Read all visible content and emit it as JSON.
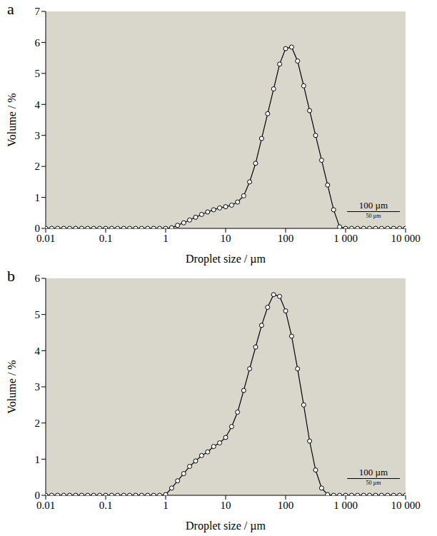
{
  "chart_data": [
    {
      "type": "line",
      "title": "a",
      "xlabel": "Droplet size / µm",
      "ylabel": "Volume / %",
      "log": "x",
      "grid": false,
      "annotations": [
        "100 µm",
        "50 µm"
      ],
      "xlim": [
        0.01,
        10000
      ],
      "xticks": [
        0.01,
        0.1,
        1,
        10,
        100,
        {
          "value": 1000,
          "label": "1 000"
        },
        {
          "value": 10000,
          "label": "10 000"
        }
      ],
      "ylim": [
        0,
        7
      ],
      "yticks": [
        0,
        1,
        2,
        3,
        4,
        5,
        6,
        7
      ],
      "x": [
        0.01,
        0.0126,
        0.0158,
        0.02,
        0.0251,
        0.0316,
        0.0398,
        0.0501,
        0.0631,
        0.0794,
        0.1,
        0.126,
        0.158,
        0.2,
        0.251,
        0.316,
        0.398,
        0.501,
        0.631,
        0.794,
        1,
        1.26,
        1.58,
        2,
        2.51,
        3.16,
        3.98,
        5.01,
        6.31,
        7.94,
        10,
        12.6,
        15.8,
        20,
        25.1,
        31.6,
        39.8,
        50.1,
        63.1,
        79.4,
        100,
        126,
        158,
        200,
        251,
        316,
        398,
        501,
        631,
        794,
        1000,
        1260,
        1580,
        2000,
        2510,
        3160,
        3980,
        5010,
        6310,
        7940,
        10000
      ],
      "values": [
        0,
        0,
        0,
        0,
        0,
        0,
        0,
        0,
        0,
        0,
        0,
        0,
        0,
        0,
        0,
        0,
        0,
        0,
        0,
        0,
        0,
        0.02,
        0.1,
        0.18,
        0.27,
        0.36,
        0.45,
        0.53,
        0.6,
        0.66,
        0.7,
        0.75,
        0.85,
        1.05,
        1.5,
        2.1,
        2.9,
        3.7,
        4.5,
        5.3,
        5.8,
        5.85,
        5.4,
        4.6,
        3.8,
        3.0,
        2.2,
        1.4,
        0.6,
        0.05,
        0,
        0,
        0,
        0,
        0,
        0,
        0,
        0,
        0,
        0,
        0
      ],
      "color": "#000000",
      "marker": "circle",
      "line_style": "solid"
    },
    {
      "type": "line",
      "title": "b",
      "xlabel": "Droplet size / µm",
      "ylabel": "Volume / %",
      "log": "x",
      "grid": false,
      "annotations": [
        "100 µm",
        "50 µm"
      ],
      "xlim": [
        0.01,
        10000
      ],
      "xticks": [
        0.01,
        0.1,
        1,
        10,
        100,
        {
          "value": 1000,
          "label": "1 000"
        },
        {
          "value": 10000,
          "label": "10 000"
        }
      ],
      "ylim": [
        0,
        6
      ],
      "yticks": [
        0,
        1,
        2,
        3,
        4,
        5,
        6
      ],
      "x": [
        0.01,
        0.0126,
        0.0158,
        0.02,
        0.0251,
        0.0316,
        0.0398,
        0.0501,
        0.0631,
        0.0794,
        0.1,
        0.126,
        0.158,
        0.2,
        0.251,
        0.316,
        0.398,
        0.501,
        0.631,
        0.794,
        1,
        1.26,
        1.58,
        2,
        2.51,
        3.16,
        3.98,
        5.01,
        6.31,
        7.94,
        10,
        12.6,
        15.8,
        20,
        25.1,
        31.6,
        39.8,
        50.1,
        63.1,
        79.4,
        100,
        126,
        158,
        200,
        251,
        316,
        398,
        501,
        631,
        794,
        1000,
        1260,
        1580,
        2000,
        2510,
        3160,
        3980,
        5010,
        6310,
        7940,
        10000
      ],
      "values": [
        0,
        0,
        0,
        0,
        0,
        0,
        0,
        0,
        0,
        0,
        0,
        0,
        0,
        0,
        0,
        0,
        0,
        0,
        0,
        0,
        0.02,
        0.2,
        0.4,
        0.6,
        0.8,
        0.95,
        1.1,
        1.2,
        1.35,
        1.45,
        1.6,
        1.9,
        2.3,
        2.9,
        3.5,
        4.1,
        4.7,
        5.2,
        5.55,
        5.5,
        5.1,
        4.4,
        3.5,
        2.5,
        1.5,
        0.7,
        0.2,
        0.02,
        0,
        0,
        0,
        0,
        0,
        0,
        0,
        0,
        0,
        0,
        0,
        0,
        0
      ],
      "color": "#000000",
      "marker": "circle",
      "line_style": "solid"
    }
  ]
}
